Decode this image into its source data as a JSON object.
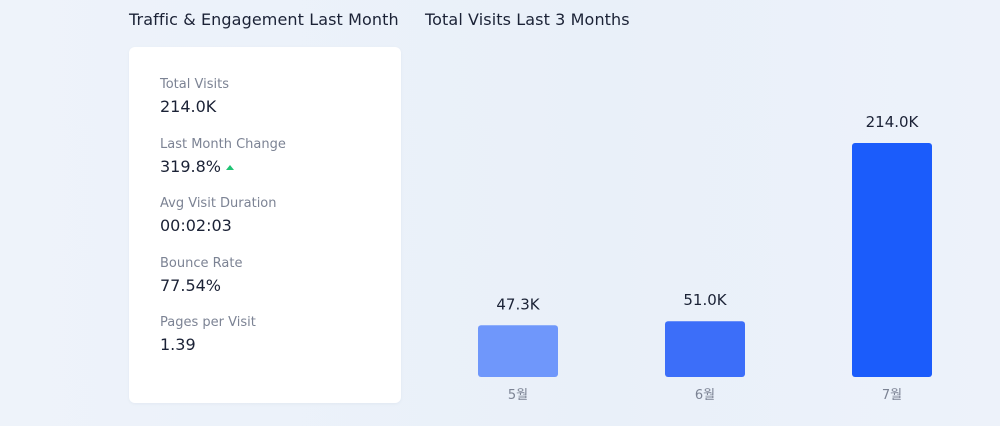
{
  "traffic_panel": {
    "title": "Traffic & Engagement Last Month",
    "stats": [
      {
        "label": "Total Visits",
        "value": "214.0K"
      },
      {
        "label": "Last Month Change",
        "value": "319.8%",
        "trend": "up",
        "trend_color": "#20c374"
      },
      {
        "label": "Avg Visit Duration",
        "value": "00:02:03"
      },
      {
        "label": "Bounce Rate",
        "value": "77.54%"
      },
      {
        "label": "Pages per Visit",
        "value": "1.39"
      }
    ]
  },
  "visits_panel": {
    "title": "Total Visits Last 3 Months"
  },
  "chart_data": {
    "type": "bar",
    "title": "Total Visits Last 3 Months",
    "categories": [
      "5월",
      "6월",
      "7월"
    ],
    "values": [
      47300,
      51000,
      214000
    ],
    "value_labels": [
      "47.3K",
      "51.0K",
      "214.0K"
    ],
    "colors": [
      "#6f97fb",
      "#3c6ef9",
      "#1b5cfb"
    ],
    "ylim": [
      0,
      214000
    ],
    "grid": false,
    "legend": "none"
  }
}
